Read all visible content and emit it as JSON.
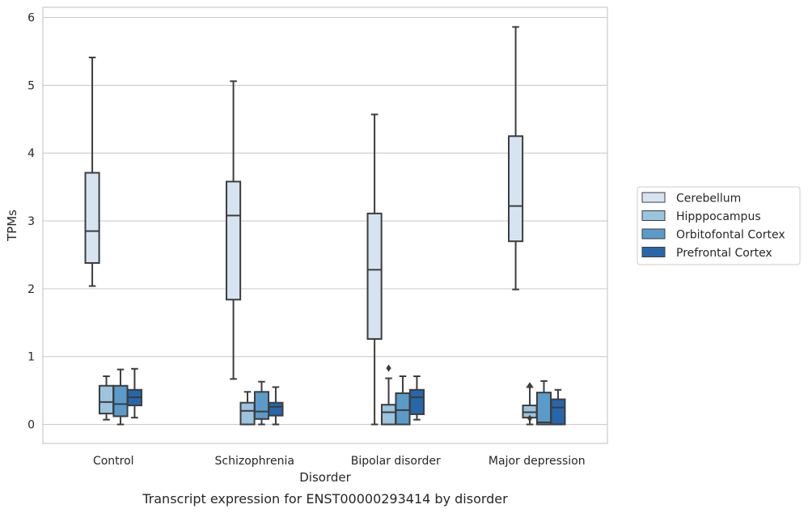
{
  "chart_data": {
    "type": "box",
    "title": "Transcript expression for ENST00000293414 by disorder",
    "xlabel": "Disorder",
    "ylabel": "TPMs",
    "ylim": [
      -0.28,
      6.15
    ],
    "yticks": [
      0,
      1,
      2,
      3,
      4,
      5,
      6
    ],
    "grid": "horizontal",
    "legend_position": "right",
    "categories": [
      "Control",
      "Schizophrenia",
      "Bipolar disorder",
      "Major depression"
    ],
    "series": [
      {
        "name": "Cerebellum",
        "color": "#d6e4f2",
        "boxes": [
          {
            "whislo": 2.04,
            "q1": 2.38,
            "med": 2.85,
            "q3": 3.71,
            "whishi": 5.41,
            "fliers": []
          },
          {
            "whislo": 0.67,
            "q1": 1.84,
            "med": 3.08,
            "q3": 3.58,
            "whishi": 5.06,
            "fliers": []
          },
          {
            "whislo": 0.0,
            "q1": 1.26,
            "med": 2.28,
            "q3": 3.11,
            "whishi": 4.57,
            "fliers": []
          },
          {
            "whislo": 1.99,
            "q1": 2.7,
            "med": 3.22,
            "q3": 4.25,
            "whishi": 5.86,
            "fliers": []
          }
        ]
      },
      {
        "name": "Hipppocampus",
        "color": "#9cc4de",
        "boxes": [
          {
            "whislo": 0.07,
            "q1": 0.16,
            "med": 0.33,
            "q3": 0.57,
            "whishi": 0.71,
            "fliers": []
          },
          {
            "whislo": 0.0,
            "q1": 0.0,
            "med": 0.2,
            "q3": 0.32,
            "whishi": 0.48,
            "fliers": []
          },
          {
            "whislo": 0.0,
            "q1": 0.0,
            "med": 0.18,
            "q3": 0.29,
            "whishi": 0.68,
            "fliers": [
              0.83
            ]
          },
          {
            "whislo": 0.0,
            "q1": 0.1,
            "med": 0.18,
            "q3": 0.28,
            "whishi": 0.55,
            "fliers": [
              0.09,
              0.57
            ]
          }
        ]
      },
      {
        "name": "Orbitofontal Cortex",
        "color": "#5a9bc9",
        "boxes": [
          {
            "whislo": 0.0,
            "q1": 0.12,
            "med": 0.3,
            "q3": 0.57,
            "whishi": 0.81,
            "fliers": []
          },
          {
            "whislo": 0.0,
            "q1": 0.08,
            "med": 0.19,
            "q3": 0.48,
            "whishi": 0.63,
            "fliers": []
          },
          {
            "whislo": 0.0,
            "q1": 0.0,
            "med": 0.21,
            "q3": 0.46,
            "whishi": 0.71,
            "fliers": []
          },
          {
            "whislo": 0.0,
            "q1": 0.0,
            "med": 0.03,
            "q3": 0.47,
            "whishi": 0.64,
            "fliers": []
          }
        ]
      },
      {
        "name": "Prefrontal Cortex",
        "color": "#2667ab",
        "boxes": [
          {
            "whislo": 0.1,
            "q1": 0.28,
            "med": 0.4,
            "q3": 0.51,
            "whishi": 0.82,
            "fliers": []
          },
          {
            "whislo": 0.0,
            "q1": 0.13,
            "med": 0.26,
            "q3": 0.32,
            "whishi": 0.55,
            "fliers": []
          },
          {
            "whislo": 0.07,
            "q1": 0.15,
            "med": 0.4,
            "q3": 0.51,
            "whishi": 0.71,
            "fliers": []
          },
          {
            "whislo": 0.0,
            "q1": 0.0,
            "med": 0.25,
            "q3": 0.37,
            "whishi": 0.51,
            "fliers": []
          }
        ]
      }
    ]
  }
}
